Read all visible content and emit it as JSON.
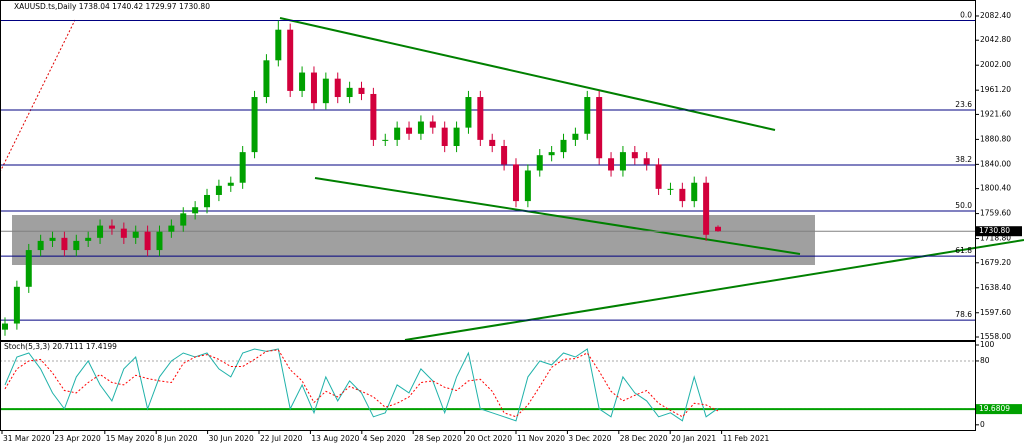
{
  "chart_data": [
    {
      "type": "candlestick",
      "title": "XAUUSD.ts,Daily  1738.04 1740.42 1729.97 1730.80",
      "open": [
        1570,
        1580,
        1640,
        1700,
        1715,
        1720,
        1700,
        1715,
        1720,
        1740,
        1735,
        1720,
        1730,
        1700,
        1730,
        1740,
        1760,
        1770,
        1790,
        1805,
        1810,
        1860,
        1950,
        2010,
        2060,
        1960,
        1990,
        1940,
        1980,
        1950,
        1965,
        1955,
        1880,
        1880,
        1900,
        1890,
        1910,
        1900,
        1870,
        1900,
        1950,
        1880,
        1870,
        1840,
        1780,
        1830,
        1855,
        1860,
        1880,
        1890,
        1950,
        1850,
        1830,
        1860,
        1850,
        1840,
        1800,
        1800,
        1780,
        1810,
        1738.04
      ],
      "high": [
        1590,
        1650,
        1710,
        1725,
        1730,
        1730,
        1725,
        1730,
        1750,
        1750,
        1745,
        1740,
        1740,
        1740,
        1750,
        1770,
        1780,
        1800,
        1815,
        1820,
        1870,
        1960,
        2020,
        2075,
        2070,
        2000,
        2000,
        1990,
        1990,
        1975,
        1975,
        1965,
        1890,
        1910,
        1910,
        1920,
        1920,
        1910,
        1910,
        1960,
        1960,
        1890,
        1880,
        1850,
        1840,
        1865,
        1870,
        1890,
        1900,
        1960,
        1960,
        1860,
        1870,
        1870,
        1860,
        1850,
        1810,
        1810,
        1820,
        1820,
        1740.42
      ],
      "low": [
        1560,
        1570,
        1630,
        1690,
        1705,
        1690,
        1690,
        1705,
        1710,
        1725,
        1710,
        1710,
        1690,
        1690,
        1720,
        1730,
        1750,
        1760,
        1780,
        1795,
        1800,
        1850,
        1940,
        2000,
        1950,
        1950,
        1930,
        1930,
        1940,
        1940,
        1945,
        1870,
        1870,
        1870,
        1880,
        1880,
        1890,
        1860,
        1860,
        1890,
        1870,
        1860,
        1830,
        1770,
        1770,
        1820,
        1845,
        1850,
        1870,
        1880,
        1840,
        1820,
        1820,
        1840,
        1830,
        1790,
        1790,
        1770,
        1770,
        1715,
        1729.97
      ],
      "close": [
        1580,
        1640,
        1700,
        1715,
        1720,
        1700,
        1715,
        1720,
        1740,
        1735,
        1720,
        1730,
        1700,
        1730,
        1740,
        1760,
        1770,
        1790,
        1805,
        1810,
        1860,
        1950,
        2010,
        2060,
        1960,
        1990,
        1940,
        1980,
        1950,
        1965,
        1955,
        1880,
        1880,
        1900,
        1890,
        1910,
        1900,
        1870,
        1900,
        1950,
        1880,
        1870,
        1840,
        1780,
        1830,
        1855,
        1860,
        1880,
        1890,
        1950,
        1850,
        1830,
        1860,
        1850,
        1840,
        1800,
        1800,
        1780,
        1810,
        1725,
        1730.8
      ],
      "up_color": "#00a000",
      "down_color": "#d2003c",
      "ylim": [
        1553.1,
        2108.5
      ],
      "yticks": [
        {
          "value": 2082.4,
          "label": "2082.40"
        },
        {
          "value": 2042.8,
          "label": "2042.80"
        },
        {
          "value": 2002,
          "label": "2002.00"
        },
        {
          "value": 1961.2,
          "label": "1961.20"
        },
        {
          "value": 1921.6,
          "label": "1921.60"
        },
        {
          "value": 1880.8,
          "label": "1880.80"
        },
        {
          "value": 1840,
          "label": "1840.00"
        },
        {
          "value": 1800.4,
          "label": "1800.40"
        },
        {
          "value": 1759.6,
          "label": "1759.60"
        },
        {
          "value": 1718.8,
          "label": "1718.80"
        },
        {
          "value": 1679.2,
          "label": "1679.20"
        },
        {
          "value": 1638.4,
          "label": "1638.40"
        },
        {
          "value": 1597.6,
          "label": "1597.60"
        },
        {
          "value": 1558,
          "label": "1558.00"
        }
      ],
      "fib_levels": [
        {
          "value": 2075,
          "label": "0.0"
        },
        {
          "value": 1928.8,
          "label": "23.6"
        },
        {
          "value": 1838.9,
          "label": "38.2"
        },
        {
          "value": 1763.8,
          "label": "50.0"
        },
        {
          "value": 1690.2,
          "label": "61.8"
        },
        {
          "value": 1585.6,
          "label": "78.6"
        }
      ],
      "current_price": {
        "value": 1730.8,
        "label": "1730.80"
      },
      "x_labels": [
        "31 Mar 2020",
        "23 Apr 2020",
        "15 May 2020",
        "8 Jun 2020",
        "30 Jun 2020",
        "22 Jul 2020",
        "13 Aug 2020",
        "4 Sep 2020",
        "28 Sep 2020",
        "20 Oct 2020",
        "11 Nov 2020",
        "3 Dec 2020",
        "28 Dec 2020",
        "20 Jan 2021",
        "11 Feb 2021"
      ]
    },
    {
      "type": "line",
      "title": "Stoch(5,3,3) 20.7111 17.4199",
      "series": [
        {
          "color": "#20b2aa",
          "values": [
            50,
            85,
            90,
            70,
            40,
            20,
            60,
            80,
            50,
            30,
            70,
            85,
            20,
            60,
            80,
            90,
            85,
            90,
            70,
            60,
            90,
            95,
            92,
            95,
            20,
            50,
            15,
            60,
            30,
            55,
            40,
            10,
            15,
            50,
            40,
            70,
            55,
            15,
            60,
            90,
            20,
            15,
            10,
            5,
            60,
            80,
            75,
            90,
            85,
            95,
            20,
            10,
            60,
            40,
            30,
            10,
            15,
            5,
            60,
            10,
            20.7111
          ]
        },
        {
          "color": "#ff0000",
          "values": [
            45,
            70,
            80,
            82,
            65,
            43,
            40,
            53,
            63,
            53,
            50,
            62,
            58,
            55,
            53,
            77,
            85,
            88,
            82,
            73,
            73,
            82,
            92,
            94,
            69,
            55,
            28,
            42,
            35,
            48,
            42,
            35,
            22,
            27,
            35,
            53,
            55,
            47,
            43,
            55,
            57,
            42,
            15,
            10,
            25,
            48,
            72,
            82,
            83,
            90,
            67,
            42,
            30,
            37,
            43,
            27,
            18,
            10,
            27,
            25,
            17.4199
          ]
        }
      ],
      "ylim": [
        -9,
        105
      ],
      "yticks": [
        100,
        80,
        0
      ],
      "levels": [
        80,
        20
      ],
      "marker": {
        "value": 19.6809,
        "label": "19.6809"
      }
    }
  ]
}
